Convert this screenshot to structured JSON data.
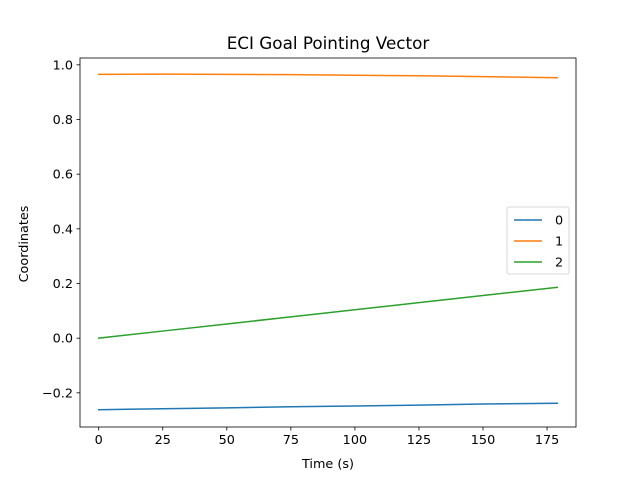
{
  "chart_data": {
    "type": "line",
    "title": "ECI Goal Pointing Vector",
    "xlabel": "Time (s)",
    "ylabel": "Coordinates",
    "xlim": [
      -7.3,
      186.3
    ],
    "ylim": [
      -0.325,
      1.025
    ],
    "xticks": [
      0,
      25,
      50,
      75,
      100,
      125,
      150,
      175
    ],
    "xtick_labels": [
      "0",
      "25",
      "50",
      "75",
      "100",
      "125",
      "150",
      "175"
    ],
    "yticks": [
      -0.2,
      0.0,
      0.2,
      0.4,
      0.6,
      0.8,
      1.0
    ],
    "ytick_labels": [
      "−0.2",
      "0.0",
      "0.2",
      "0.4",
      "0.6",
      "0.8",
      "1.0"
    ],
    "legend_position": "center-right",
    "grid": false,
    "series": [
      {
        "name": "0",
        "color": "#1f77b4",
        "x": [
          0,
          25,
          50,
          75,
          100,
          125,
          150,
          179
        ],
        "y": [
          -0.262,
          -0.258,
          -0.255,
          -0.251,
          -0.248,
          -0.245,
          -0.241,
          -0.238
        ]
      },
      {
        "name": "1",
        "color": "#ff7f0e",
        "x": [
          0,
          25,
          50,
          75,
          100,
          125,
          150,
          179
        ],
        "y": [
          0.965,
          0.966,
          0.965,
          0.964,
          0.962,
          0.96,
          0.957,
          0.953
        ]
      },
      {
        "name": "2",
        "color": "#2ca02c",
        "x": [
          0,
          25,
          50,
          75,
          100,
          125,
          150,
          179
        ],
        "y": [
          0.0,
          0.026,
          0.052,
          0.078,
          0.104,
          0.13,
          0.156,
          0.186
        ]
      }
    ]
  }
}
